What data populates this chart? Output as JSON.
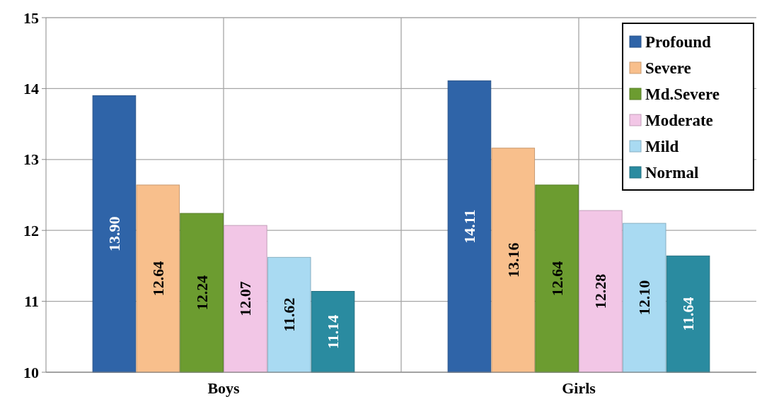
{
  "chart_data": {
    "type": "bar",
    "categories": [
      "Boys",
      "Girls"
    ],
    "series": [
      {
        "name": "Profound",
        "color": "#2f64a8",
        "values": [
          13.9,
          14.11
        ],
        "value_labels": [
          "13.90",
          "14.11"
        ]
      },
      {
        "name": "Severe",
        "color": "#f8bf8c",
        "values": [
          12.64,
          13.16
        ],
        "value_labels": [
          "12.64",
          "13.16"
        ]
      },
      {
        "name": "Md.Severe",
        "color": "#6c9c30",
        "values": [
          12.24,
          12.64
        ],
        "value_labels": [
          "12.24",
          "12.64"
        ]
      },
      {
        "name": "Moderate",
        "color": "#f2c6e6",
        "values": [
          12.07,
          12.28
        ],
        "value_labels": [
          "12.07",
          "12.28"
        ]
      },
      {
        "name": "Mild",
        "color": "#a9daf2",
        "values": [
          11.62,
          12.1
        ],
        "value_labels": [
          "11.62",
          "12.10"
        ]
      },
      {
        "name": "Normal",
        "color": "#2a8ba0",
        "values": [
          11.14,
          11.64
        ],
        "value_labels": [
          "11.14",
          "11.64"
        ]
      }
    ],
    "ylim": [
      10,
      15
    ],
    "yticks": [
      10,
      11,
      12,
      13,
      14,
      15
    ],
    "grid": true,
    "legend": "top right"
  }
}
